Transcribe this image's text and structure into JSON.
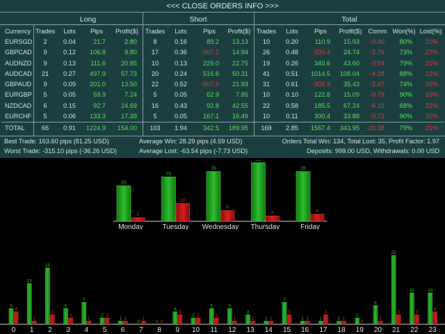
{
  "title": "<<< CLOSE ORDERS INFO >>>",
  "groups": [
    "Long",
    "Short",
    "Total"
  ],
  "columns": [
    "Currency",
    "Trades",
    "Lots",
    "Pips",
    "Profit($)",
    "Trades",
    "Lots",
    "Pips",
    "Profit($)",
    "Trades",
    "Lots",
    "Pips",
    "Profit($)",
    "Comm",
    "Won(%)",
    "Lost(%)"
  ],
  "rows": [
    [
      "EURSGD",
      "2",
      "0.04",
      "21.7",
      "2.80",
      "8",
      "0.16",
      "89.2",
      "13.13",
      "10",
      "0.20",
      "110.9",
      "15.93",
      "-0.40",
      "80%",
      "20%"
    ],
    [
      "GBPCAD",
      "9",
      "0.12",
      "106.8",
      "9.80",
      "17",
      "0.36",
      "-307.2",
      "14.94",
      "26",
      "0.48",
      "-200.4",
      "24.74",
      "-2.76",
      "73%",
      "27%"
    ],
    [
      "AUDNZD",
      "9",
      "0.13",
      "111.6",
      "20.85",
      "10",
      "0.13",
      "229.0",
      "22.75",
      "19",
      "0.26",
      "340.6",
      "43.60",
      "-3.04",
      "79%",
      "21%"
    ],
    [
      "AUDCAD",
      "21",
      "0.27",
      "497.9",
      "57.73",
      "20",
      "0.24",
      "516.6",
      "50.31",
      "41",
      "0.51",
      "1014.5",
      "108.04",
      "-4.28",
      "88%",
      "12%"
    ],
    [
      "GBPAUD",
      "9",
      "0.09",
      "201.0",
      "13.50",
      "22",
      "0.52",
      "-507.9",
      "21.93",
      "31",
      "0.61",
      "-306.9",
      "35.43",
      "-2.67",
      "74%",
      "26%"
    ],
    [
      "EURGBP",
      "5",
      "0.05",
      "59.9",
      "7.24",
      "5",
      "0.05",
      "62.9",
      "7.85",
      "10",
      "0.10",
      "122.8",
      "15.09",
      "-0.79",
      "90%",
      "10%"
    ],
    [
      "NZDCAD",
      "6",
      "0.15",
      "92.7",
      "24.69",
      "16",
      "0.43",
      "92.8",
      "42.55",
      "22",
      "0.58",
      "185.5",
      "67.24",
      "-6.16",
      "68%",
      "32%"
    ],
    [
      "EURCHF",
      "5",
      "0.06",
      "133.3",
      "17.39",
      "5",
      "0.05",
      "167.1",
      "16.49",
      "10",
      "0.11",
      "300.4",
      "33.88",
      "-0.72",
      "90%",
      "10%"
    ]
  ],
  "total_row": [
    "TOTAL",
    "66",
    "0.91",
    "1224.9",
    "154.00",
    "103",
    "1.94",
    "342.5",
    "189.95",
    "169",
    "2.85",
    "1567.4",
    "343.95",
    "-20.38",
    "79%",
    "21%"
  ],
  "footer": {
    "best_trade": "Best Trade: 163.60 pips (81.25 USD)",
    "worst_trade": "Worst Trade: -315.10 pips (-36.26 USD)",
    "avg_win": "Average Win: 28.29 pips (4.59 USD)",
    "avg_lost": "Average Lost: -63.54 pips (-7.73 USD)",
    "orders_total": "Orders Total Win: 134, Total Lost: 35, Profit Factor: 1.97",
    "deposits": "Deposits: 999.00 USD, Withdrawals: 0.00 USD"
  },
  "colors": {
    "win": "#22a822",
    "loss": "#c01818",
    "panel": "#1b3f40",
    "text_green": "#56e35a",
    "text_red": "#e8373a"
  },
  "chart_data": [
    {
      "type": "bar",
      "categories": [
        "Monday",
        "Tuesday",
        "Wednesday",
        "Thursday",
        "Friday"
      ],
      "series": [
        {
          "values": [
            20,
            25,
            28,
            33,
            28
          ]
        },
        {
          "values": [
            2,
            10,
            6,
            3,
            4
          ]
        }
      ]
    },
    {
      "type": "bar",
      "categories": [
        "0",
        "1",
        "2",
        "3",
        "4",
        "5",
        "6",
        "7",
        "8",
        "9",
        "10",
        "11",
        "12",
        "13",
        "14",
        "15",
        "16",
        "17",
        "18",
        "19",
        "20",
        "21",
        "22",
        "23"
      ],
      "series": [
        {
          "values": [
            5,
            13,
            18,
            5,
            7,
            2,
            1,
            0,
            0,
            4,
            2,
            5,
            5,
            3,
            1,
            7,
            1,
            1,
            1,
            2,
            6,
            22,
            10,
            10
          ]
        },
        {
          "values": [
            4,
            1,
            3,
            2,
            1,
            2,
            1,
            1,
            0,
            3,
            2,
            2,
            1,
            1,
            1,
            3,
            1,
            3,
            1,
            0,
            1,
            3,
            3,
            4
          ]
        }
      ]
    }
  ]
}
